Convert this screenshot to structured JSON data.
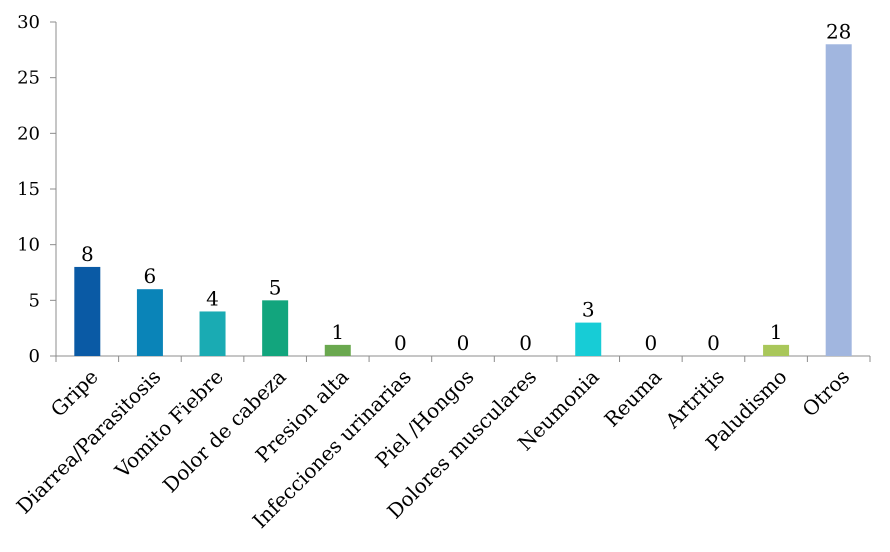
{
  "chart_data": {
    "type": "bar",
    "title": "",
    "xlabel": "",
    "ylabel": "",
    "ylim": [
      0,
      30
    ],
    "yticks": [
      0,
      5,
      10,
      15,
      20,
      25,
      30
    ],
    "grid": false,
    "legend": "none",
    "categories": [
      "Gripe",
      "Diarrea/Parasitosis",
      "Vomito Fiebre",
      "Dolor de cabeza",
      "Presion alta",
      "Infecciones urinarias",
      "Piel /Hongos",
      "Dolores musculares",
      "Neumonia",
      "Reuma",
      "Artritis",
      "Paludismo",
      "Otros"
    ],
    "values": [
      8,
      6,
      4,
      5,
      1,
      0,
      0,
      0,
      3,
      0,
      0,
      1,
      28
    ],
    "data_labels": [
      "8",
      "6",
      "4",
      "5",
      "1",
      "0",
      "0",
      "0",
      "3",
      "0",
      "0",
      "1",
      "28"
    ],
    "colors": [
      "#0a5aa5",
      "#0a84b8",
      "#1aabb3",
      "#12a57d",
      "#6aa84f",
      "#b5d16a",
      "#b5d16a",
      "#b5d16a",
      "#17ccd6",
      "#b5d16a",
      "#b5d16a",
      "#a9c75a",
      "#a1b6df"
    ]
  }
}
